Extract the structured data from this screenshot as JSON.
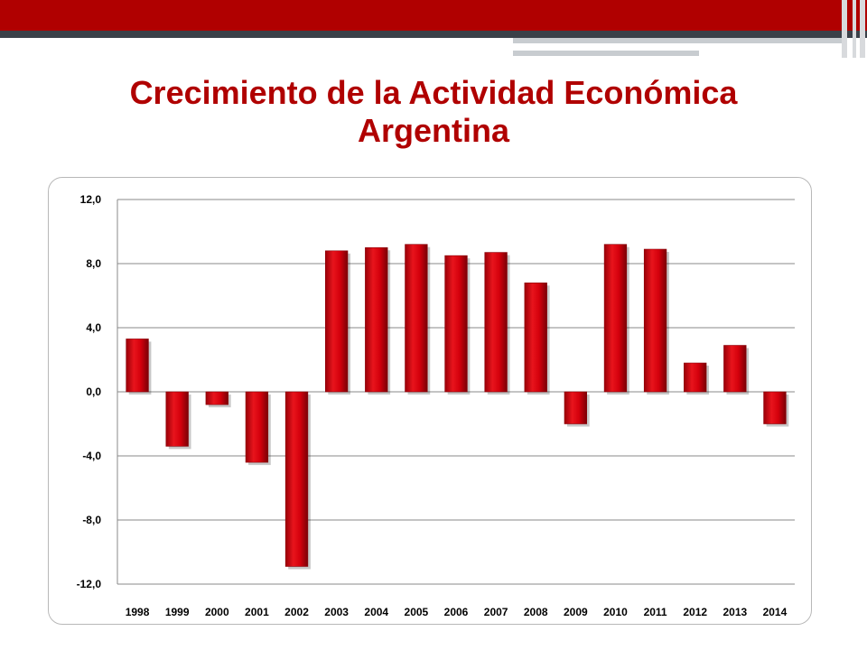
{
  "slide": {
    "title_line1": "Crecimiento de la Actividad Económica",
    "title_line2": "Argentina"
  },
  "colors": {
    "accent": "#b00000",
    "bar": "#d9000d",
    "bar_dark": "#8a0008",
    "dark_band": "#3a4048"
  },
  "chart_data": {
    "type": "bar",
    "title": "",
    "xlabel": "",
    "ylabel": "",
    "categories": [
      "1998",
      "1999",
      "2000",
      "2001",
      "2002",
      "2003",
      "2004",
      "2005",
      "2006",
      "2007",
      "2008",
      "2009",
      "2010",
      "2011",
      "2012",
      "2013",
      "2014"
    ],
    "values": [
      3.3,
      -3.4,
      -0.8,
      -4.4,
      -10.9,
      8.8,
      9.0,
      9.2,
      8.5,
      8.7,
      6.8,
      -2.0,
      9.2,
      8.9,
      1.8,
      2.9,
      -2.0
    ],
    "ylim": [
      -12,
      12
    ],
    "yticks": [
      "12,0",
      "8,0",
      "4,0",
      "0,0",
      "-4,0",
      "-8,0",
      "-12,0"
    ],
    "ytick_values": [
      12,
      8,
      4,
      0,
      -4,
      -8,
      -12
    ],
    "grid": true
  }
}
